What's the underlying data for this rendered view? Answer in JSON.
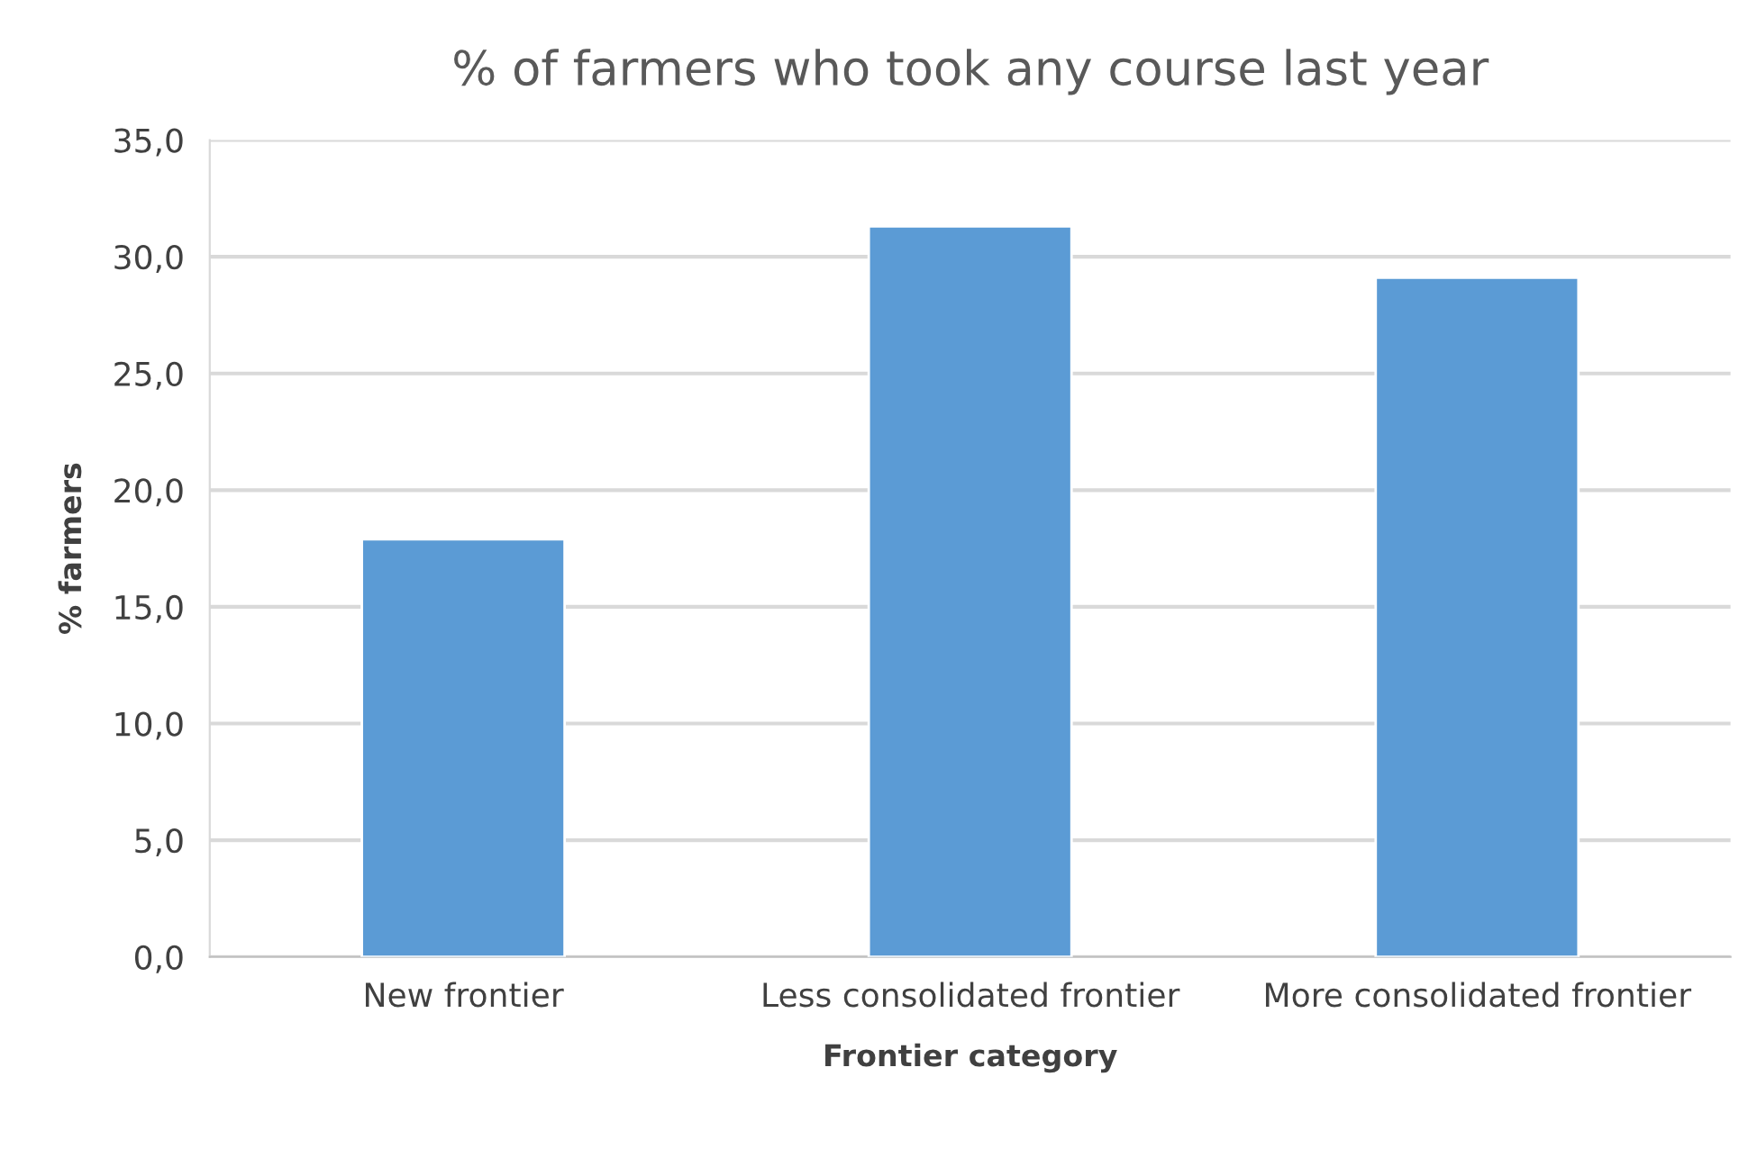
{
  "chart_data": {
    "type": "bar",
    "title": "% of farmers who took any course last year",
    "xlabel": "Frontier category",
    "ylabel": "% farmers",
    "categories": [
      "New frontier",
      "Less consolidated frontier",
      "More consolidated frontier"
    ],
    "values": [
      17.9,
      31.3,
      29.1
    ],
    "color": "#5b9bd5",
    "ylim": [
      0,
      35
    ],
    "yticks": [
      {
        "value": 0,
        "label": "0,0"
      },
      {
        "value": 5,
        "label": "5,0"
      },
      {
        "value": 10,
        "label": "10,0"
      },
      {
        "value": 15,
        "label": "15,0"
      },
      {
        "value": 20,
        "label": "20,0"
      },
      {
        "value": 25,
        "label": "25,0"
      },
      {
        "value": 30,
        "label": "30,0"
      },
      {
        "value": 35,
        "label": "35,0"
      }
    ],
    "grid": "y",
    "legend": false
  }
}
